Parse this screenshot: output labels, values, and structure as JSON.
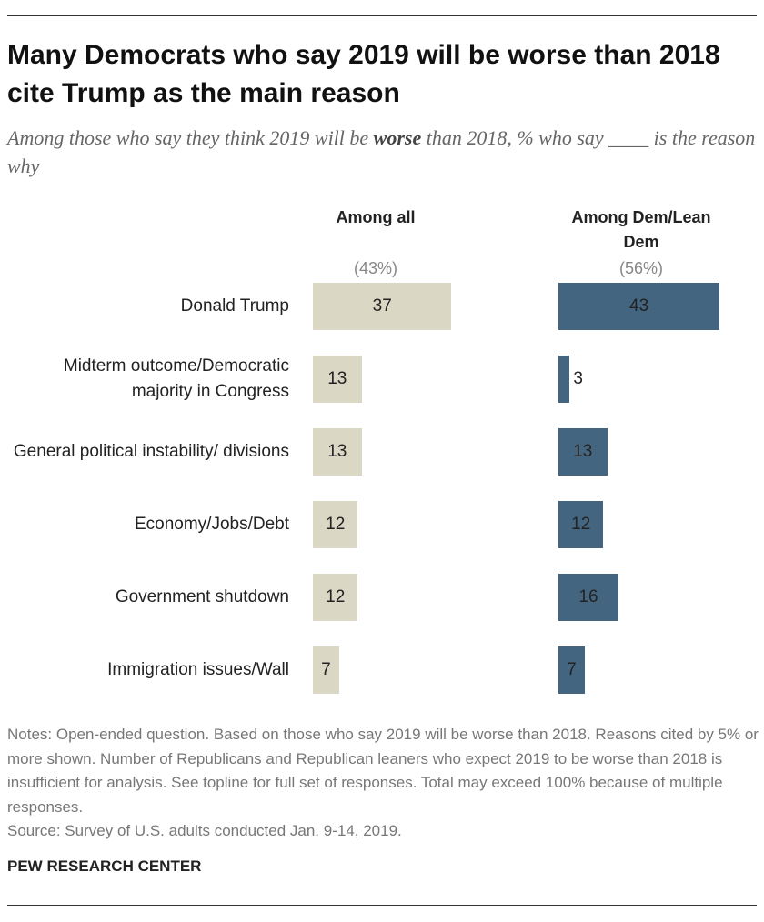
{
  "chart_data": {
    "type": "bar",
    "title": "Many Democrats who say 2019 will be worse than 2018 cite Trump as the main reason",
    "subtitle_parts": [
      "Among those who say they think 2019 will be ",
      "worse",
      " than 2018, % who say ____ is the reason why"
    ],
    "categories": [
      "Donald Trump",
      "Midterm outcome/Democratic majority in Congress",
      "General political instability/ divisions",
      "Economy/Jobs/Debt",
      "Government shutdown",
      "Immigration issues/Wall"
    ],
    "series": [
      {
        "name": "Among all",
        "sample_label": "(43%)",
        "color": "#dbd7c5",
        "values": [
          37,
          13,
          13,
          12,
          12,
          7
        ]
      },
      {
        "name": "Among Dem/Lean Dem",
        "sample_label": "(56%)",
        "color": "#44657f",
        "values": [
          43,
          3,
          13,
          12,
          16,
          7
        ]
      }
    ],
    "notes": "Notes: Open-ended question. Based on those who say 2019 will be worse than 2018. Reasons cited by 5% or more shown. Number of Republicans and Republican leaners who expect 2019 to be worse than 2018 is insufficient for analysis. See topline for full set of responses. Total may exceed 100% because of multiple responses.",
    "source": "Source: Survey of U.S. adults conducted Jan. 9-14, 2019.",
    "brand": "PEW RESEARCH CENTER"
  }
}
